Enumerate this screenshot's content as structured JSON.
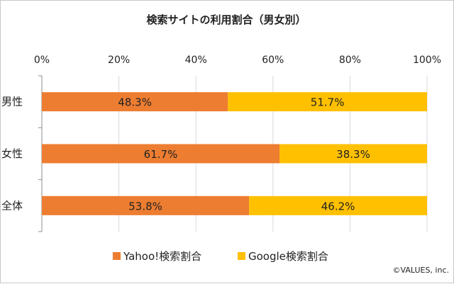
{
  "chart_data": {
    "type": "bar",
    "orientation": "horizontal",
    "stacked": true,
    "title": "検索サイトの利用割合（男女別）",
    "categories": [
      "男性",
      "女性",
      "全体"
    ],
    "series": [
      {
        "name": "Yahoo!検索割合",
        "values": [
          48.3,
          61.7,
          53.8
        ],
        "labels": [
          "48.3%",
          "61.7%",
          "53.8%"
        ],
        "color": "#ED7D31"
      },
      {
        "name": "Google検索割合",
        "values": [
          51.7,
          38.3,
          46.2
        ],
        "labels": [
          "51.7%",
          "38.3%",
          "46.2%"
        ],
        "color": "#FFC000"
      }
    ],
    "xlim": [
      0,
      100
    ],
    "xticks": [
      0,
      20,
      40,
      60,
      80,
      100
    ],
    "xtick_labels": [
      "0%",
      "20%",
      "40%",
      "60%",
      "80%",
      "100%"
    ],
    "x_axis_position": "top",
    "grid": true,
    "gridline_color": "#d9d9d9",
    "legend_position": "bottom"
  },
  "copyright": "©VALUES, inc."
}
